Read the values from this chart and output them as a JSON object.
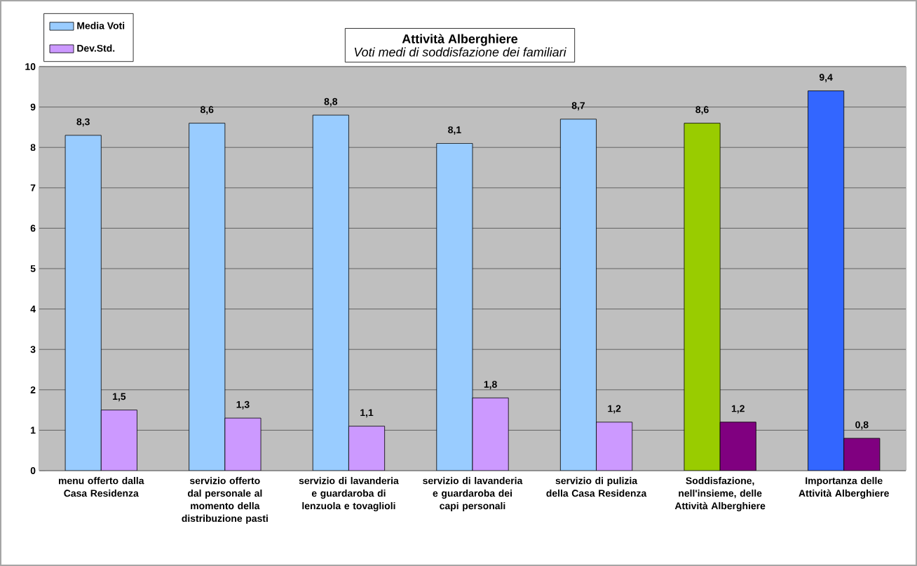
{
  "chart_data": {
    "type": "bar",
    "title": "Attività Alberghiere",
    "subtitle": "Voti medi di soddisfazione dei familiari",
    "categories": [
      "menu offerto dalla Casa Residenza",
      "servizio offerto dal personale al momento della distribuzione pasti",
      "servizio di lavanderia e guardaroba di lenzuola e tovaglioli",
      "servizio di lavanderia e guardaroba dei capi personali",
      "servizio di pulizia della Casa Residenza",
      "Soddisfazione, nell'insieme, delle Attività Alberghiere",
      "Importanza delle Attività Alberghiere"
    ],
    "series": [
      {
        "name": "Media Voti",
        "color": "#99ccff",
        "colors": [
          "#99ccff",
          "#99ccff",
          "#99ccff",
          "#99ccff",
          "#99ccff",
          "#99cc00",
          "#3366ff"
        ],
        "values": [
          8.3,
          8.6,
          8.8,
          8.1,
          8.7,
          8.6,
          9.4
        ],
        "value_labels": [
          "8,3",
          "8,6",
          "8,8",
          "8,1",
          "8,7",
          "8,6",
          "9,4"
        ]
      },
      {
        "name": "Dev.Std.",
        "color": "#cc99ff",
        "colors": [
          "#cc99ff",
          "#cc99ff",
          "#cc99ff",
          "#cc99ff",
          "#cc99ff",
          "#800080",
          "#800080"
        ],
        "values": [
          1.5,
          1.3,
          1.1,
          1.8,
          1.2,
          1.2,
          0.8
        ],
        "value_labels": [
          "1,5",
          "1,3",
          "1,1",
          "1,8",
          "1,2",
          "1,2",
          "0,8"
        ]
      }
    ],
    "ylim": [
      0,
      10
    ],
    "yticks": [
      0,
      1,
      2,
      3,
      4,
      5,
      6,
      7,
      8,
      9,
      10
    ],
    "grid": "y",
    "legend": "top left"
  }
}
